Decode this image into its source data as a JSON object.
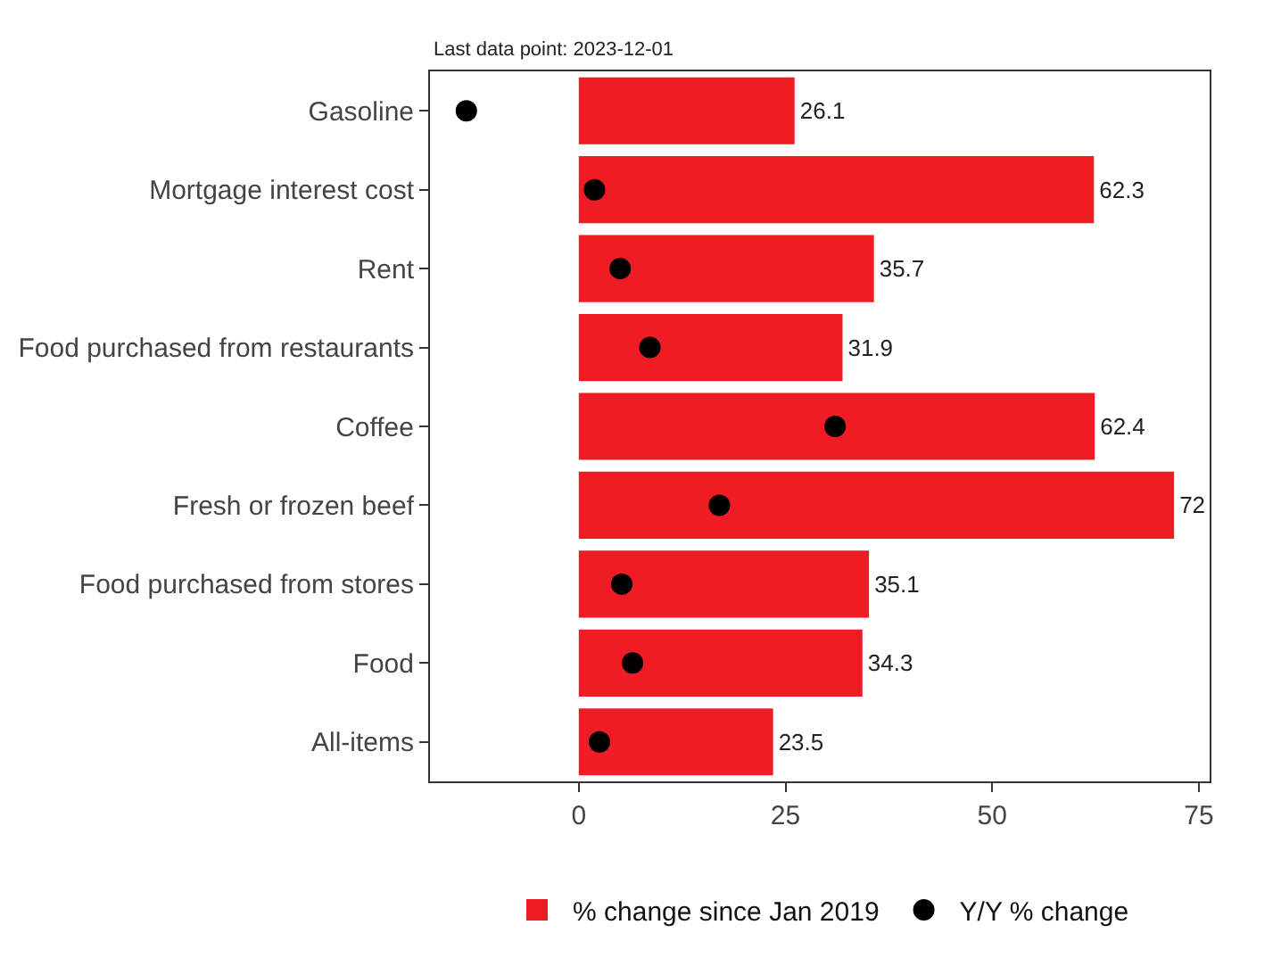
{
  "chart_data": {
    "type": "bar",
    "orientation": "horizontal",
    "subtitle": "Last data point: 2023-12-01",
    "categories": [
      "Gasoline",
      "Mortgage interest cost",
      "Rent",
      "Food purchased from restaurants",
      "Coffee",
      "Fresh or frozen beef",
      "Food purchased from stores",
      "Food",
      "All-items"
    ],
    "series": [
      {
        "name": "% change since Jan 2019",
        "color": "#ee1c25",
        "values": [
          26.1,
          62.3,
          35.7,
          31.9,
          62.4,
          72,
          35.1,
          34.3,
          23.5
        ],
        "data_labels": true
      },
      {
        "name": "Y/Y % change",
        "type": "scatter",
        "marker": "circle",
        "color": "#000000",
        "values": [
          -13.6,
          1.9,
          5.0,
          8.6,
          31.0,
          17.0,
          5.2,
          6.5,
          2.5
        ]
      }
    ],
    "xlim": [
      -18,
      76.3
    ],
    "xticks": [
      0,
      25,
      50,
      75
    ],
    "grid": false,
    "legend": "bottom"
  }
}
